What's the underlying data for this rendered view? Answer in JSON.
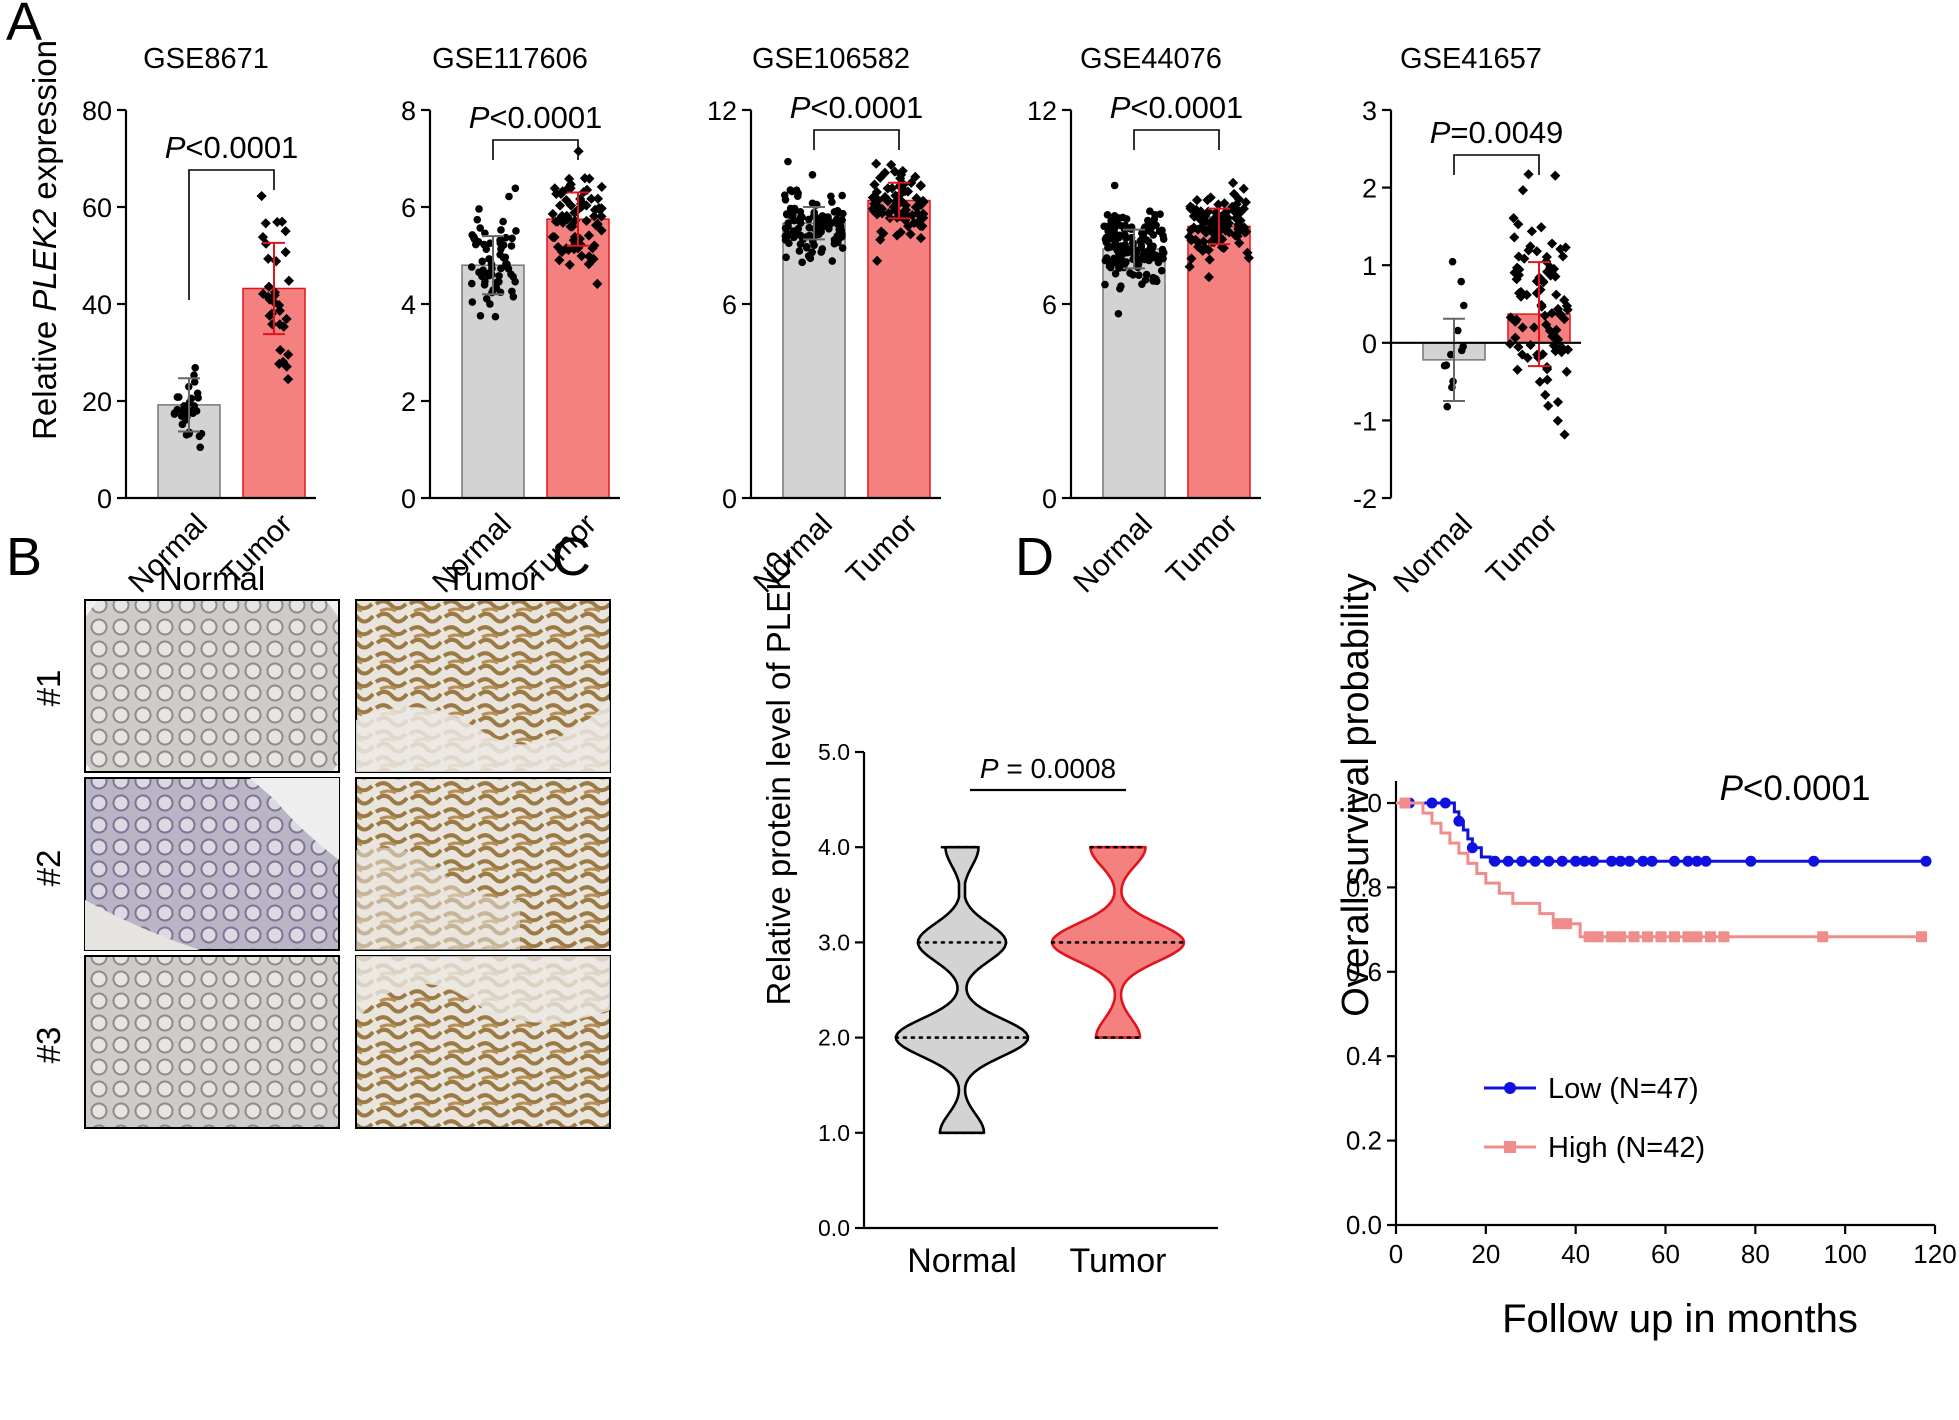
{
  "panel_labels": [
    "A",
    "B",
    "C",
    "D"
  ],
  "colors": {
    "normal": "#d3d3d3",
    "tumor": "#f48080",
    "tumor_edge": "#e0151c",
    "low": "#1010e0",
    "high": "#f08c8c"
  },
  "panel_b": {
    "col_headers": [
      "Normal",
      "Tumor"
    ],
    "row_labels": [
      "#1",
      "#2",
      "#3"
    ]
  },
  "chart_data": [
    {
      "type": "bar",
      "panel": "A",
      "title": "GSE8671",
      "ylabel_prefix": "Relative ",
      "ylabel_italic": "PLEK2",
      "ylabel_suffix": " expression",
      "categories": [
        "Normal",
        "Tumor"
      ],
      "values": [
        19.2,
        43.2
      ],
      "sd": [
        5.5,
        9.4
      ],
      "ylim": [
        0,
        80
      ],
      "yticks": [
        "0",
        "20",
        "40",
        "60",
        "80"
      ],
      "p_italic": "P",
      "p_text": "<0.0001",
      "n_points": [
        32,
        32
      ]
    },
    {
      "type": "bar",
      "panel": "A",
      "title": "GSE117606",
      "categories": [
        "Normal",
        "Tumor"
      ],
      "values": [
        4.8,
        5.75
      ],
      "sd": [
        0.6,
        0.55
      ],
      "ylim": [
        0,
        8
      ],
      "yticks": [
        "0",
        "2",
        "4",
        "6",
        "8"
      ],
      "p_italic": "P",
      "p_text": "<0.0001",
      "n_points": [
        65,
        74
      ]
    },
    {
      "type": "bar",
      "panel": "A",
      "title": "GSE106582",
      "categories": [
        "Normal",
        "Tumor"
      ],
      "values": [
        8.5,
        9.2
      ],
      "sd": [
        0.5,
        0.55
      ],
      "ylim": [
        0,
        12
      ],
      "yticks": [
        "0",
        "6",
        "12"
      ],
      "p_italic": "P",
      "p_text": "<0.0001",
      "n_points": [
        117,
        77
      ]
    },
    {
      "type": "bar",
      "panel": "A",
      "title": "GSE44076",
      "categories": [
        "Normal",
        "Tumor"
      ],
      "values": [
        7.7,
        8.4
      ],
      "sd": [
        0.6,
        0.55
      ],
      "ylim": [
        0,
        12
      ],
      "yticks": [
        "0",
        "6",
        "12"
      ],
      "p_italic": "P",
      "p_text": "<0.0001",
      "n_points": [
        148,
        98
      ]
    },
    {
      "type": "bar",
      "panel": "A",
      "title": "GSE41657",
      "categories": [
        "Normal",
        "Tumor"
      ],
      "values": [
        -0.22,
        0.37
      ],
      "sd": [
        0.53,
        0.67
      ],
      "ylim": [
        -2,
        3
      ],
      "yticks": [
        "-2",
        "-1",
        "0",
        "1",
        "2",
        "3"
      ],
      "p_italic": "P",
      "p_text": "=0.0049",
      "n_points": [
        12,
        88
      ]
    },
    {
      "type": "violin",
      "panel": "C",
      "ylabel": "Relative protein level of PLEK2",
      "categories": [
        "Normal",
        "Tumor"
      ],
      "ylim": [
        0,
        5
      ],
      "yticks": [
        "0.0",
        "1.0",
        "2.0",
        "3.0",
        "4.0",
        "5.0"
      ],
      "p_italic": "P",
      "p_text": " = 0.0008",
      "distributions": [
        {
          "name": "Normal",
          "levels": [
            1.0,
            2.0,
            3.0,
            4.0
          ],
          "counts": [
            4,
            12,
            8,
            3
          ],
          "quartile_lines": [
            2.0,
            3.0
          ]
        },
        {
          "name": "Tumor",
          "levels": [
            2.0,
            3.0,
            4.0
          ],
          "counts": [
            4,
            12,
            5
          ],
          "quartile_lines": [
            3.0,
            3.0
          ]
        }
      ]
    },
    {
      "type": "line",
      "panel": "D",
      "xlabel": "Follow up in months",
      "ylabel": "Overall survival probability",
      "xlim": [
        0,
        120
      ],
      "ylim": [
        0,
        1.0
      ],
      "xticks": [
        "0",
        "20",
        "40",
        "60",
        "80",
        "100",
        "120"
      ],
      "yticks": [
        "0.0",
        "0.2",
        "0.4",
        "0.6",
        "0.8",
        "1.0"
      ],
      "p_italic": "P",
      "p_text": "<0.0001",
      "legend_position": "bottom-left",
      "series": [
        {
          "name": "Low (N=47)",
          "steps": [
            [
              0,
              1.0
            ],
            [
              12,
              1.0
            ],
            [
              13,
              0.979
            ],
            [
              14,
              0.957
            ],
            [
              15,
              0.936
            ],
            [
              16,
              0.915
            ],
            [
              17,
              0.894
            ],
            [
              19,
              0.872
            ],
            [
              21,
              0.862
            ],
            [
              118,
              0.862
            ]
          ],
          "censor_x": [
            3,
            8,
            11,
            14,
            17,
            22,
            25,
            28,
            31,
            34,
            37,
            40,
            42,
            44,
            48,
            50,
            52,
            55,
            57,
            62,
            65,
            67,
            69,
            79,
            93,
            118
          ]
        },
        {
          "name": "High (N=42)",
          "steps": [
            [
              0,
              1.0
            ],
            [
              5,
              1.0
            ],
            [
              6,
              0.976
            ],
            [
              8,
              0.952
            ],
            [
              10,
              0.929
            ],
            [
              12,
              0.905
            ],
            [
              14,
              0.881
            ],
            [
              16,
              0.857
            ],
            [
              18,
              0.833
            ],
            [
              20,
              0.81
            ],
            [
              23,
              0.786
            ],
            [
              26,
              0.762
            ],
            [
              32,
              0.738
            ],
            [
              35,
              0.714
            ],
            [
              41,
              0.683
            ],
            [
              117,
              0.683
            ]
          ],
          "censor_x": [
            2,
            36,
            38,
            43,
            45,
            48,
            50,
            53,
            56,
            59,
            62,
            65,
            67,
            70,
            73,
            95,
            117
          ]
        }
      ]
    }
  ]
}
